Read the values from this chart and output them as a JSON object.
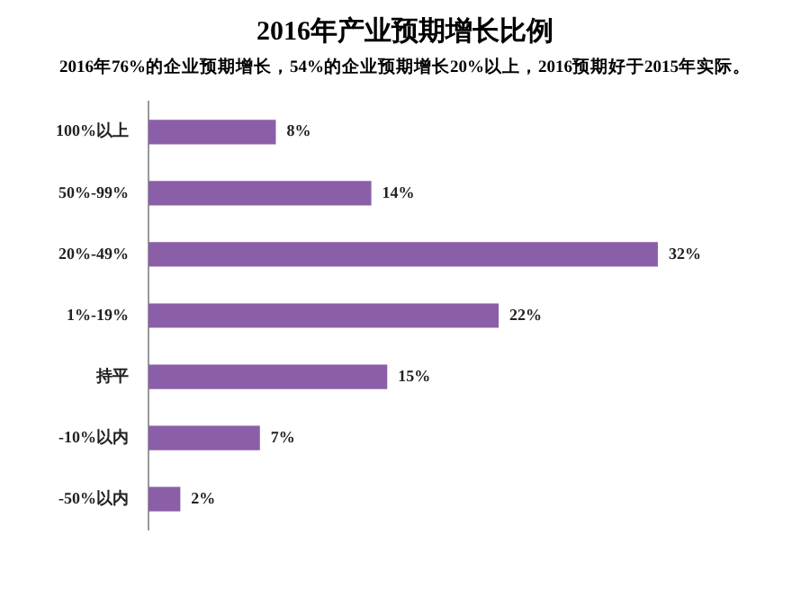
{
  "chart_data": {
    "type": "bar",
    "orientation": "horizontal",
    "title": "2016年产业预期增长比例",
    "subtitle": "2016年76%的企业预期增长，54%的企业预期增长20%以上，2016预期好于2015年实际。",
    "categories": [
      "100%以上",
      "50%-99%",
      "20%-49%",
      "1%-19%",
      "持平",
      "-10%以内",
      "-50%以内"
    ],
    "values": [
      8,
      14,
      32,
      22,
      15,
      7,
      2
    ],
    "value_labels": [
      "8%",
      "14%",
      "32%",
      "22%",
      "15%",
      "7%",
      "2%"
    ],
    "color": "#8b5fa8",
    "legend": false
  }
}
